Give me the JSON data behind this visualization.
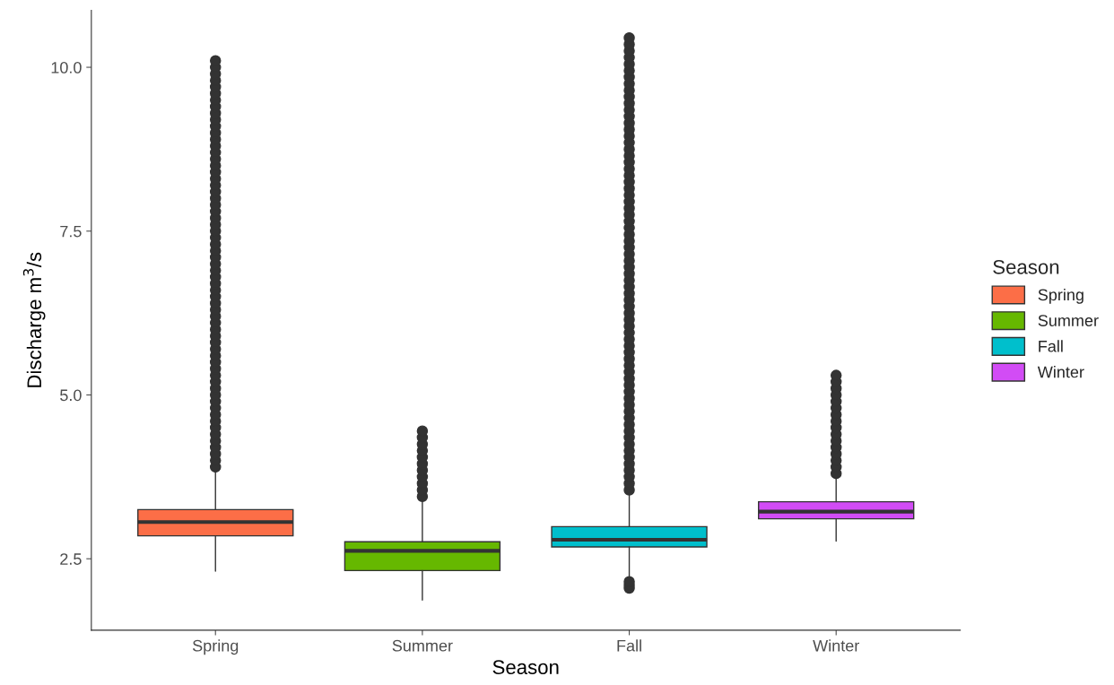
{
  "chart_data": {
    "type": "box",
    "xlabel": "Season",
    "ylabel": "Discharge m$^{3}$/s",
    "legend_title": "Season",
    "legend": "right",
    "grid": false,
    "categories": [
      "Spring",
      "Summer",
      "Fall",
      "Winter"
    ],
    "ylim": [
      1.41,
      10.87
    ],
    "yticks": [
      {
        "value": 2.5,
        "label": "2.5"
      },
      {
        "value": 5,
        "label": "5.0"
      },
      {
        "value": 7.5,
        "label": "7.5"
      },
      {
        "value": 10,
        "label": "10.0"
      }
    ],
    "series": [
      {
        "name": "Spring",
        "color": "#fc6e47",
        "boxes": [
          {
            "low": 2.31,
            "q1": 2.85,
            "median": 3.06,
            "q3": 3.25,
            "high": 3.84,
            "outliers": [
              3.9,
              4.0,
              4.1,
              4.2,
              4.3,
              4.4,
              4.5,
              4.6,
              4.7,
              4.8,
              4.9,
              5.0,
              5.1,
              5.2,
              5.3,
              5.4,
              5.5,
              5.6,
              5.7,
              5.8,
              5.9,
              6.0,
              6.1,
              6.2,
              6.3,
              6.4,
              6.5,
              6.6,
              6.7,
              6.8,
              6.9,
              7.0,
              7.1,
              7.2,
              7.3,
              7.4,
              7.5,
              7.6,
              7.7,
              7.8,
              7.9,
              8.0,
              8.1,
              8.2,
              8.3,
              8.4,
              8.5,
              8.6,
              8.7,
              8.8,
              8.9,
              9.0,
              9.1,
              9.2,
              9.3,
              9.4,
              9.5,
              9.6,
              9.7,
              9.8,
              9.9,
              10.0,
              10.1
            ]
          },
          null,
          null,
          null
        ]
      },
      {
        "name": "Summer",
        "color": "#66b800",
        "boxes": [
          null,
          {
            "low": 1.87,
            "q1": 2.32,
            "median": 2.62,
            "q3": 2.76,
            "high": 3.43,
            "outliers": [
              3.45,
              3.55,
              3.65,
              3.75,
              3.85,
              3.95,
              4.05,
              4.15,
              4.25,
              4.35,
              4.45
            ]
          },
          null,
          null
        ]
      },
      {
        "name": "Fall",
        "color": "#00bfcc",
        "boxes": [
          null,
          null,
          {
            "low": 2.22,
            "q1": 2.68,
            "median": 2.79,
            "q3": 2.99,
            "high": 3.5,
            "outliers": [
              2.05,
              2.1,
              2.15,
              3.55,
              3.65,
              3.75,
              3.85,
              3.95,
              4.05,
              4.15,
              4.25,
              4.35,
              4.45,
              4.55,
              4.65,
              4.75,
              4.85,
              4.95,
              5.05,
              5.15,
              5.25,
              5.35,
              5.45,
              5.55,
              5.65,
              5.75,
              5.85,
              5.95,
              6.05,
              6.15,
              6.25,
              6.35,
              6.45,
              6.55,
              6.65,
              6.75,
              6.85,
              6.95,
              7.05,
              7.15,
              7.25,
              7.35,
              7.45,
              7.55,
              7.65,
              7.75,
              7.85,
              7.95,
              8.05,
              8.15,
              8.25,
              8.35,
              8.45,
              8.55,
              8.65,
              8.75,
              8.85,
              8.95,
              9.05,
              9.15,
              9.25,
              9.35,
              9.45,
              9.55,
              9.65,
              9.75,
              9.85,
              9.95,
              10.05,
              10.15,
              10.25,
              10.35,
              10.45
            ]
          },
          null
        ]
      },
      {
        "name": "Winter",
        "color": "#d24cf5",
        "boxes": [
          null,
          null,
          null,
          {
            "low": 2.77,
            "q1": 3.11,
            "median": 3.22,
            "q3": 3.37,
            "high": 3.77,
            "outliers": [
              3.8,
              3.9,
              4.0,
              4.1,
              4.2,
              4.3,
              4.4,
              4.5,
              4.6,
              4.7,
              4.8,
              4.9,
              5.0,
              5.1,
              5.2,
              5.3
            ]
          }
        ]
      }
    ]
  }
}
